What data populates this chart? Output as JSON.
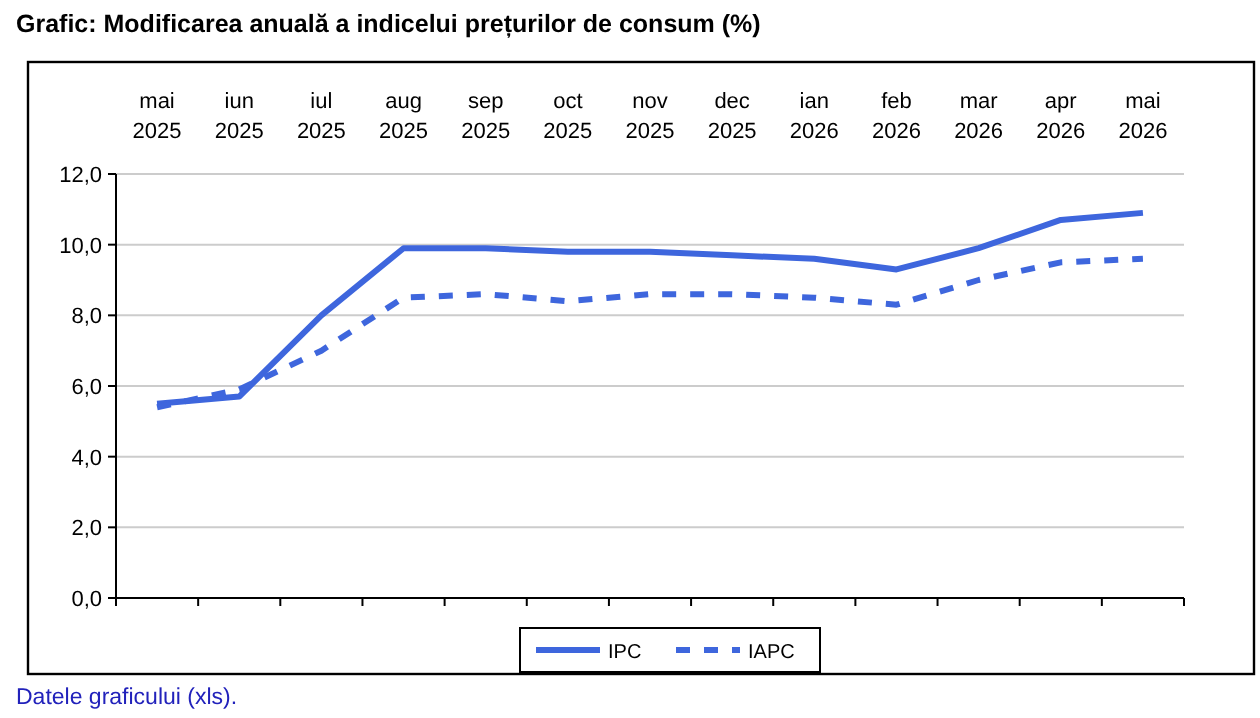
{
  "chart_data": {
    "type": "line",
    "title": "Grafic: Modificarea anuală a indicelui prețurilor de consum (%)",
    "categories": [
      "mai\n2025",
      "iun\n2025",
      "iul\n2025",
      "aug\n2025",
      "sep\n2025",
      "oct\n2025",
      "nov\n2025",
      "dec\n2025",
      "ian\n2026",
      "feb\n2026",
      "mar\n2026",
      "apr\n2026",
      "mai\n2026"
    ],
    "series": [
      {
        "name": "IPC",
        "color": "#3e66dd",
        "line_style": "solid",
        "values": [
          5.5,
          5.7,
          8.0,
          9.9,
          9.9,
          9.8,
          9.8,
          9.7,
          9.6,
          9.3,
          9.9,
          10.7,
          10.9
        ]
      },
      {
        "name": "IAPC",
        "color": "#3e66dd",
        "line_style": "dashed",
        "values": [
          5.4,
          5.9,
          7.0,
          8.5,
          8.6,
          8.4,
          8.6,
          8.6,
          8.5,
          8.3,
          9.0,
          9.5,
          9.6
        ]
      }
    ],
    "ylim": [
      0,
      12
    ],
    "yticks": [
      {
        "value": 0,
        "label": "0,0"
      },
      {
        "value": 2,
        "label": "2,0"
      },
      {
        "value": 4,
        "label": "4,0"
      },
      {
        "value": 6,
        "label": "6,0"
      },
      {
        "value": 8,
        "label": "8,0"
      },
      {
        "value": 10,
        "label": "10,0"
      },
      {
        "value": 12,
        "label": "12,0"
      }
    ],
    "grid": "y",
    "legend": "bottom",
    "annotations": [
      "Datele graficului (xls)."
    ]
  }
}
